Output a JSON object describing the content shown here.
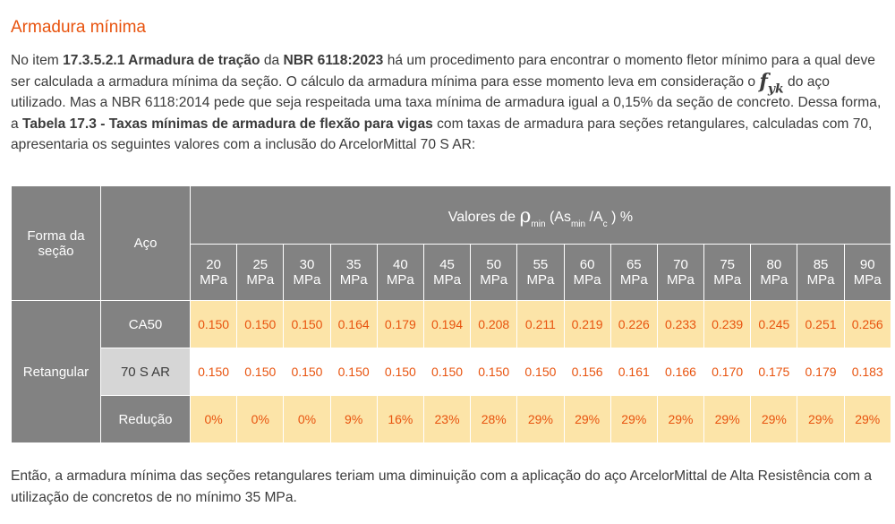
{
  "title": "Armadura mínima",
  "intro": {
    "p1": "No item ",
    "b1": "17.3.5.2.1 Armadura de tração",
    "p2": " da ",
    "b2": "NBR 6118:2023",
    "p3": " há um procedimento para encontrar o momento fletor mínimo para a qual deve ser calculada a armadura mínima da seção. O cálculo da armadura mínima para esse momento leva em consideração o ",
    "fyk_f": "f",
    "fyk_sub": "yk",
    "p4": " do aço utilizado. Mas a NBR 6118:2014 pede que seja respeitada uma taxa mínima de armadura igual a 0,15% da seção de concreto. Dessa forma, a ",
    "b3": "Tabela 17.3 - Taxas mínimas de armadura de flexão para vigas",
    "p5": " com taxas de armadura para seções retangulares, calculadas com 70, apresentaria os seguintes valores com a inclusão do ArcelorMittal 70 S AR:"
  },
  "table": {
    "col_forma": "Forma da seção",
    "col_aco": "Aço",
    "header_prefix": "Valores de ",
    "header_rho": "ρ",
    "header_min": "min",
    "header_as": " (As",
    "header_min2": "min",
    "header_ac": " /A",
    "header_c": "c",
    "header_suffix": " ) %",
    "mpa_unit": "MPa",
    "strengths": [
      "20",
      "25",
      "30",
      "35",
      "40",
      "45",
      "50",
      "55",
      "60",
      "65",
      "70",
      "75",
      "80",
      "85",
      "90"
    ],
    "forma": "Retangular",
    "rows": [
      {
        "label": "CA50",
        "values": [
          "0.150",
          "0.150",
          "0.150",
          "0.164",
          "0.179",
          "0.194",
          "0.208",
          "0.211",
          "0.219",
          "0.226",
          "0.233",
          "0.239",
          "0.245",
          "0.251",
          "0.256"
        ]
      },
      {
        "label": "70 S AR",
        "values": [
          "0.150",
          "0.150",
          "0.150",
          "0.150",
          "0.150",
          "0.150",
          "0.150",
          "0.150",
          "0.156",
          "0.161",
          "0.166",
          "0.170",
          "0.175",
          "0.179",
          "0.183"
        ]
      },
      {
        "label": "Redução",
        "values": [
          "0%",
          "0%",
          "0%",
          "9%",
          "16%",
          "23%",
          "28%",
          "29%",
          "29%",
          "29%",
          "29%",
          "29%",
          "29%",
          "29%",
          "29%"
        ]
      }
    ]
  },
  "outro": "Então, a armadura mínima das seções retangulares teriam uma diminuição com a aplicação do aço ArcelorMittal de Alta Resistência com a utilização de concretos de no mínimo 35 MPa.",
  "colors": {
    "accent": "#e8530e",
    "header_gray": "#828282",
    "highlight_yellow": "#fce4a8",
    "light_gray": "#d6d6d6"
  }
}
